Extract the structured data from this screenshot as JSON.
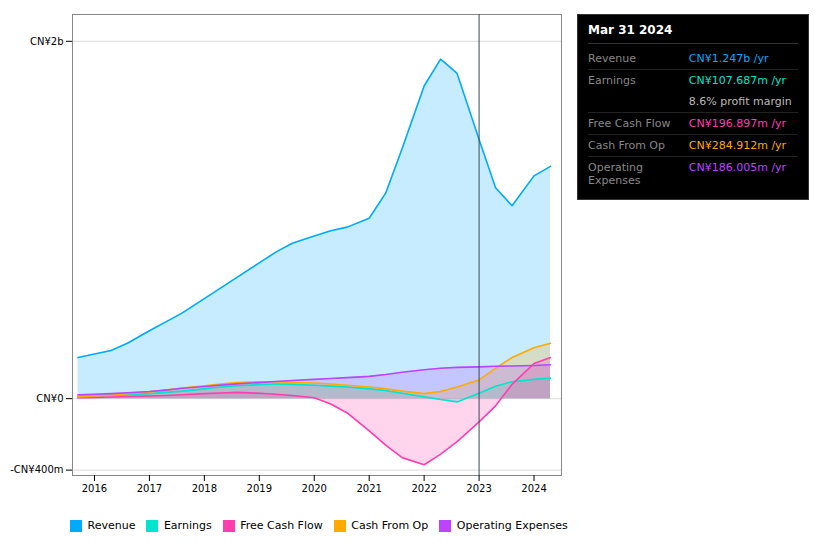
{
  "chart_data": {
    "type": "area",
    "x": [
      2015.7,
      2016.0,
      2016.3,
      2016.6,
      2017.0,
      2017.3,
      2017.6,
      2018.0,
      2018.3,
      2018.6,
      2019.0,
      2019.3,
      2019.6,
      2020.0,
      2020.3,
      2020.6,
      2021.0,
      2021.3,
      2021.6,
      2022.0,
      2022.3,
      2022.6,
      2023.0,
      2023.3,
      2023.6,
      2024.0,
      2024.3
    ],
    "series": [
      {
        "name": "Revenue",
        "color": "#00aaff",
        "values": [
          230,
          250,
          270,
          310,
          380,
          430,
          480,
          560,
          620,
          680,
          760,
          820,
          870,
          910,
          940,
          960,
          1010,
          1150,
          1400,
          1750,
          1900,
          1820,
          1450,
          1180,
          1080,
          1247,
          1300
        ]
      },
      {
        "name": "Earnings",
        "color": "#00e5cc",
        "values": [
          15,
          18,
          20,
          22,
          28,
          35,
          42,
          55,
          65,
          72,
          78,
          82,
          80,
          75,
          70,
          65,
          55,
          45,
          30,
          10,
          -5,
          -18,
          30,
          70,
          95,
          108,
          115
        ]
      },
      {
        "name": "Free Cash Flow",
        "color": "#ff3daf",
        "values": [
          5,
          7,
          9,
          12,
          15,
          18,
          22,
          28,
          32,
          35,
          30,
          25,
          18,
          5,
          -30,
          -80,
          -180,
          -260,
          -330,
          -370,
          -310,
          -240,
          -130,
          -40,
          80,
          197,
          230
        ]
      },
      {
        "name": "Cash From Op",
        "color": "#ffaa00",
        "values": [
          10,
          15,
          20,
          28,
          38,
          48,
          60,
          72,
          82,
          90,
          95,
          95,
          92,
          88,
          82,
          75,
          65,
          55,
          42,
          28,
          40,
          65,
          105,
          170,
          230,
          285,
          310
        ]
      },
      {
        "name": "Operating Expenses",
        "color": "#bb44ff",
        "values": [
          22,
          25,
          28,
          33,
          40,
          48,
          58,
          68,
          76,
          83,
          90,
          96,
          102,
          108,
          113,
          118,
          125,
          135,
          148,
          162,
          170,
          175,
          178,
          181,
          183,
          186,
          190
        ]
      }
    ],
    "xlim": [
      2015.6,
      2024.5
    ],
    "xticks": [
      2016,
      2017,
      2018,
      2019,
      2020,
      2021,
      2022,
      2023,
      2024
    ],
    "ylim": [
      -430,
      2150
    ],
    "yticks": [
      {
        "value": -400,
        "label": "-CN¥400m"
      },
      {
        "value": 0,
        "label": "CN¥0"
      },
      {
        "value": 2000,
        "label": "CN¥2b"
      }
    ],
    "grid": true,
    "legend": "bottom",
    "divider_x": 2023.0,
    "info_box": {
      "title": "Mar 31 2024",
      "rows": [
        {
          "label": "Revenue",
          "value": "CN¥1.247b /yr",
          "color": "#00aaff"
        },
        {
          "label": "Earnings",
          "value": "CN¥107.687m /yr",
          "color": "#00e5cc"
        },
        {
          "label": null,
          "value": "8.6% profit margin",
          "color": "#bbbbbb"
        },
        {
          "label": "Free Cash Flow",
          "value": "CN¥196.897m /yr",
          "color": "#ff3daf"
        },
        {
          "label": "Cash From Op",
          "value": "CN¥284.912m /yr",
          "color": "#ffaa00"
        },
        {
          "label": "Operating Expenses",
          "value": "CN¥186.005m /yr",
          "color": "#bb44ff"
        }
      ]
    }
  }
}
